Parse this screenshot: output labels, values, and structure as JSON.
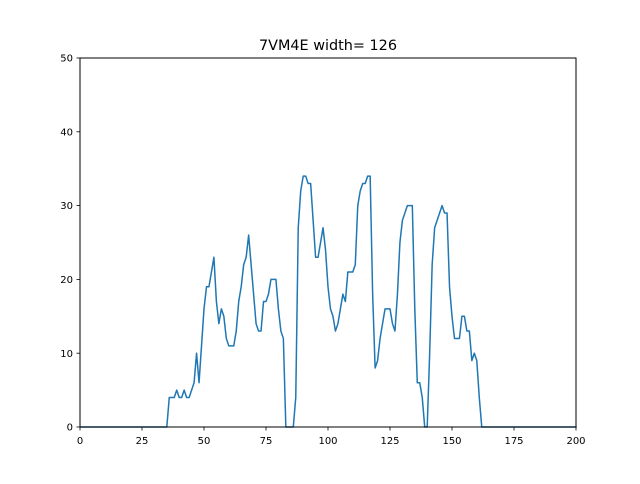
{
  "chart_data": {
    "type": "line",
    "title": "7VM4E width= 126",
    "xlabel": "",
    "ylabel": "",
    "xlim": [
      0,
      200
    ],
    "ylim": [
      0,
      50
    ],
    "xticks": [
      0,
      25,
      50,
      75,
      100,
      125,
      150,
      175,
      200
    ],
    "yticks": [
      0,
      10,
      20,
      30,
      40,
      50
    ],
    "grid": false,
    "legend": "none",
    "line_color": "#1f77b4",
    "series": [
      {
        "x": [
          0,
          1,
          2,
          3,
          4,
          5,
          6,
          7,
          8,
          9,
          10,
          11,
          12,
          13,
          14,
          15,
          16,
          17,
          18,
          19,
          20,
          21,
          22,
          23,
          24,
          25,
          26,
          27,
          28,
          29,
          30,
          31,
          32,
          33,
          34,
          35,
          36,
          37,
          38,
          39,
          40,
          41,
          42,
          43,
          44,
          45,
          46,
          47,
          48,
          49,
          50,
          51,
          52,
          53,
          54,
          55,
          56,
          57,
          58,
          59,
          60,
          61,
          62,
          63,
          64,
          65,
          66,
          67,
          68,
          69,
          70,
          71,
          72,
          73,
          74,
          75,
          76,
          77,
          78,
          79,
          80,
          81,
          82,
          83,
          84,
          85,
          86,
          87,
          88,
          89,
          90,
          91,
          92,
          93,
          94,
          95,
          96,
          97,
          98,
          99,
          100,
          101,
          102,
          103,
          104,
          105,
          106,
          107,
          108,
          109,
          110,
          111,
          112,
          113,
          114,
          115,
          116,
          117,
          118,
          119,
          120,
          121,
          122,
          123,
          124,
          125,
          126,
          127,
          128,
          129,
          130,
          131,
          132,
          133,
          134,
          135,
          136,
          137,
          138,
          139,
          140,
          141,
          142,
          143,
          144,
          145,
          146,
          147,
          148,
          149,
          150,
          151,
          152,
          153,
          154,
          155,
          156,
          157,
          158,
          159,
          160,
          161,
          162,
          163,
          164,
          165,
          166,
          167,
          168,
          169,
          170,
          171,
          172,
          173,
          174,
          175,
          176,
          177,
          178,
          179,
          180,
          181,
          182,
          183,
          184,
          185,
          186,
          187,
          188,
          189,
          190,
          191,
          192,
          193,
          194,
          195,
          196,
          197,
          198,
          199,
          200
        ],
        "y": [
          0,
          0,
          0,
          0,
          0,
          0,
          0,
          0,
          0,
          0,
          0,
          0,
          0,
          0,
          0,
          0,
          0,
          0,
          0,
          0,
          0,
          0,
          0,
          0,
          0,
          0,
          0,
          0,
          0,
          0,
          0,
          0,
          0,
          0,
          0,
          0,
          4,
          4,
          4,
          5,
          4,
          4,
          5,
          4,
          4,
          5,
          6,
          10,
          6,
          11,
          16,
          19,
          19,
          21,
          23,
          17,
          14,
          16,
          15,
          12,
          11,
          11,
          11,
          13,
          17,
          19,
          22,
          23,
          26,
          22,
          18,
          14,
          13,
          13,
          17,
          17,
          18,
          20,
          20,
          20,
          16,
          13,
          12,
          0,
          0,
          0,
          0,
          4,
          27,
          32,
          34,
          34,
          33,
          33,
          28,
          23,
          23,
          25,
          27,
          24,
          19,
          16,
          15,
          13,
          14,
          16,
          18,
          17,
          21,
          21,
          21,
          22,
          30,
          32,
          33,
          33,
          34,
          34,
          18,
          8,
          9,
          12,
          14,
          16,
          16,
          16,
          14,
          13,
          18,
          25,
          28,
          29,
          30,
          30,
          30,
          16,
          6,
          6,
          4,
          0,
          0,
          10,
          22,
          27,
          28,
          29,
          30,
          29,
          29,
          19,
          15,
          12,
          12,
          12,
          15,
          15,
          13,
          13,
          9,
          10,
          9,
          4,
          0,
          0,
          0,
          0,
          0,
          0,
          0,
          0,
          0,
          0,
          0,
          0,
          0,
          0,
          0,
          0,
          0,
          0,
          0,
          0,
          0,
          0,
          0,
          0,
          0,
          0,
          0,
          0,
          0,
          0,
          0,
          0,
          0,
          0,
          0,
          0,
          0,
          0,
          0
        ]
      }
    ]
  }
}
